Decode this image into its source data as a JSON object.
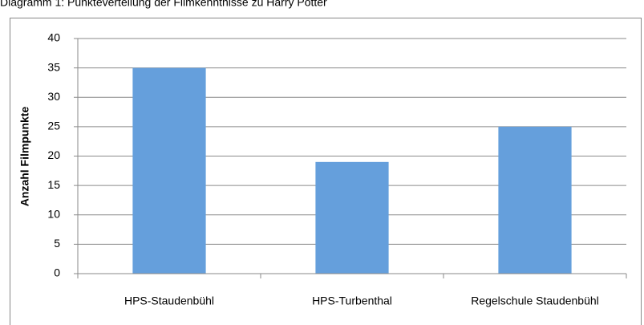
{
  "chart_data": {
    "type": "bar",
    "title": "Diagramm 1: Punkteverteilung der Filmkenntnisse zu Harry Potter",
    "y_label": "Anzahl Filmpunkte",
    "categories": [
      "HPS-Staudenbühl",
      "HPS-Turbenthal",
      "Regelschule Staudenbühl"
    ],
    "values": [
      35,
      19,
      25
    ],
    "color": "#659fdc",
    "ylim": [
      0,
      40
    ],
    "yticks": [
      0,
      5,
      10,
      15,
      20,
      25,
      30,
      35,
      40
    ],
    "grid": true
  }
}
